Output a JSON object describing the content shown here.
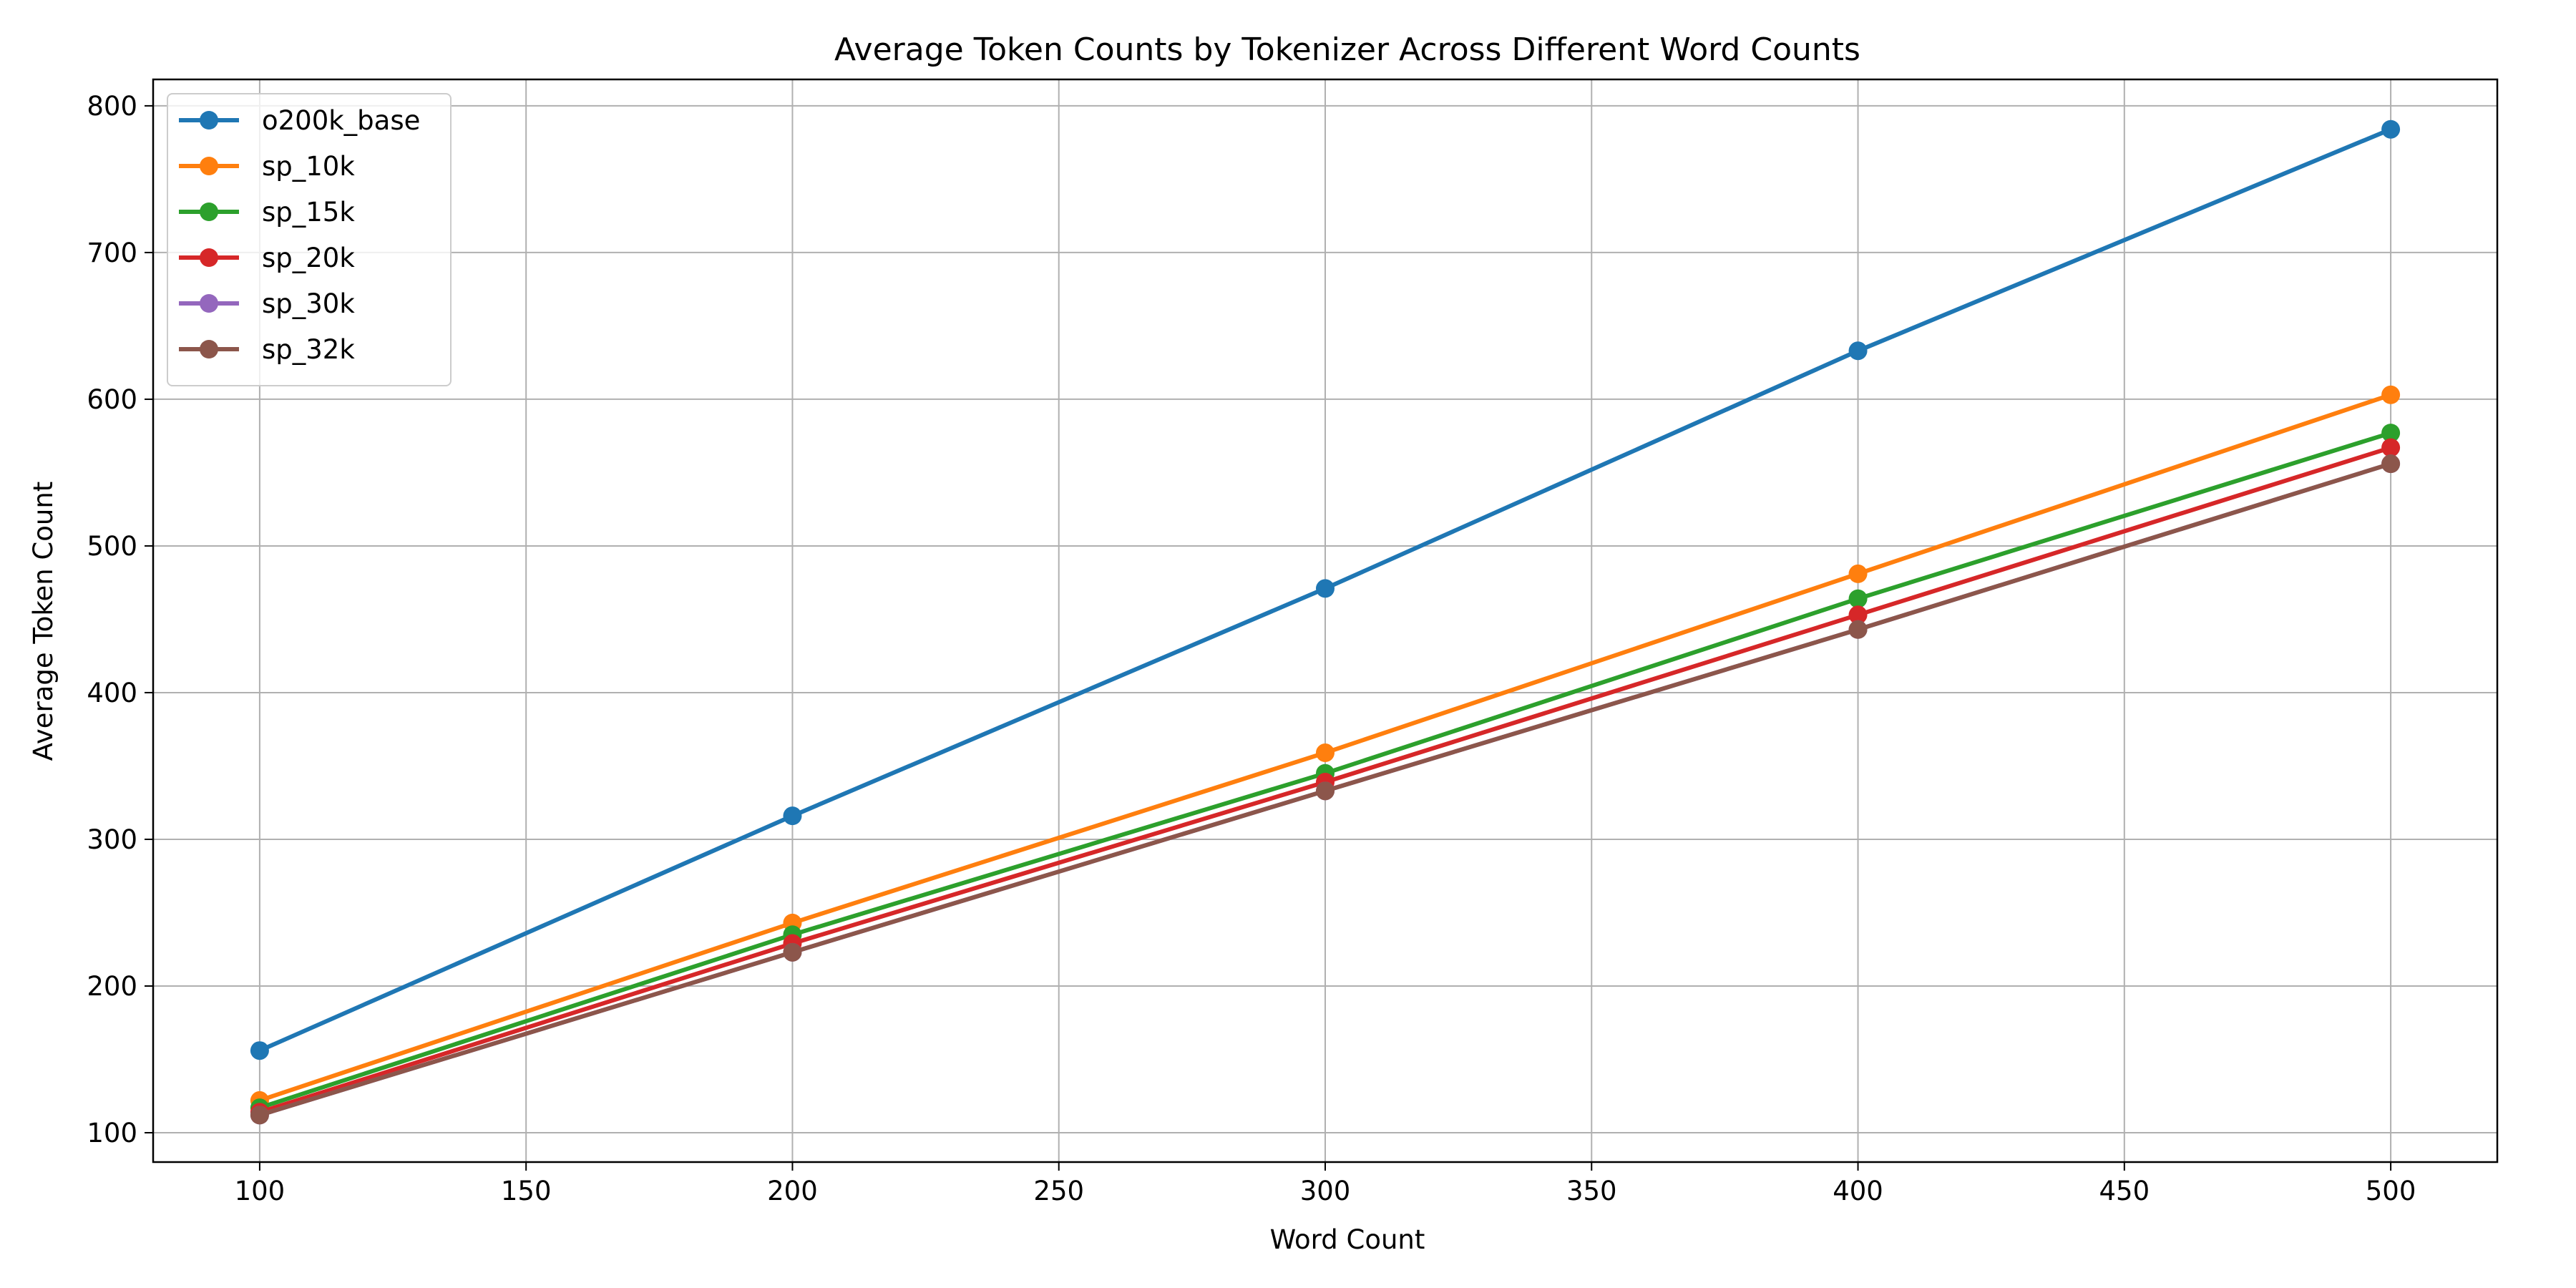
{
  "chart_data": {
    "type": "line",
    "title": "Average Token Counts by Tokenizer Across Different Word Counts",
    "xlabel": "Word Count",
    "ylabel": "Average Token Count",
    "x": [
      100,
      200,
      300,
      400,
      500
    ],
    "xlim": [
      80,
      520
    ],
    "ylim": [
      80,
      818
    ],
    "xticks": [
      100,
      150,
      200,
      250,
      300,
      350,
      400,
      450,
      500
    ],
    "yticks": [
      100,
      200,
      300,
      400,
      500,
      600,
      700,
      800
    ],
    "grid": true,
    "legend_position": "top-left",
    "series": [
      {
        "name": "o200k_base",
        "color": "#1f77b4",
        "values": [
          156,
          316,
          471,
          633,
          784
        ]
      },
      {
        "name": "sp_10k",
        "color": "#ff7f0e",
        "values": [
          122,
          243,
          359,
          481,
          603
        ]
      },
      {
        "name": "sp_15k",
        "color": "#2ca02c",
        "values": [
          117,
          235,
          345,
          464,
          577
        ]
      },
      {
        "name": "sp_20k",
        "color": "#d62728",
        "values": [
          114,
          229,
          339,
          453,
          567
        ]
      },
      {
        "name": "sp_30k",
        "color": "#9467bd",
        "values": [
          112,
          223,
          333,
          443,
          556
        ]
      },
      {
        "name": "sp_32k",
        "color": "#8c564b",
        "values": [
          112,
          223,
          333,
          443,
          556
        ]
      }
    ]
  }
}
